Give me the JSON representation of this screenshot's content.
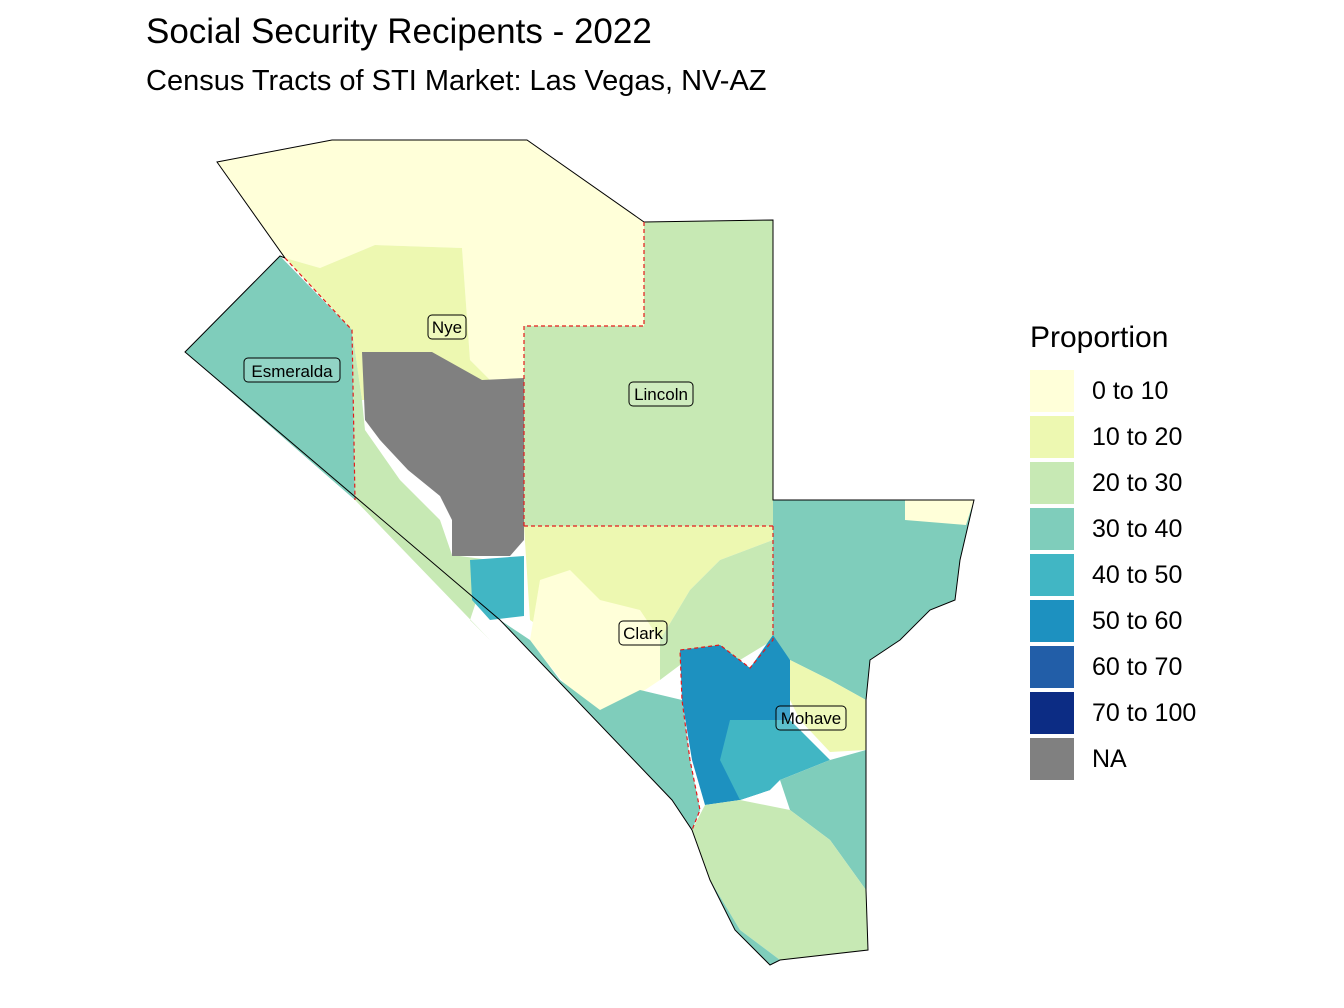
{
  "title": "Social Security Recipents - 2022",
  "subtitle": "Census Tracts of STI Market: Las Vegas, NV-AZ",
  "legend": {
    "title": "Proportion",
    "items": [
      {
        "label": "0 to 10",
        "color": "#ffffd9"
      },
      {
        "label": "10 to 20",
        "color": "#edf8b1"
      },
      {
        "label": "20 to 30",
        "color": "#c7e9b4"
      },
      {
        "label": "30 to 40",
        "color": "#7fcdbb"
      },
      {
        "label": "40 to 50",
        "color": "#41b6c4"
      },
      {
        "label": "50 to 60",
        "color": "#1d91c0"
      },
      {
        "label": "60 to 70",
        "color": "#225ea8"
      },
      {
        "label": "70 to 100",
        "color": "#0c2c84"
      },
      {
        "label": "NA",
        "color": "#808080"
      }
    ]
  },
  "counties": [
    {
      "id": "esmeralda",
      "name": "Esmeralda"
    },
    {
      "id": "nye",
      "name": "Nye"
    },
    {
      "id": "lincoln",
      "name": "Lincoln"
    },
    {
      "id": "clark",
      "name": "Clark"
    },
    {
      "id": "mohave",
      "name": "Mohave"
    }
  ],
  "colors": {
    "county_boundary": "#e41a1c",
    "outline": "#000000"
  }
}
